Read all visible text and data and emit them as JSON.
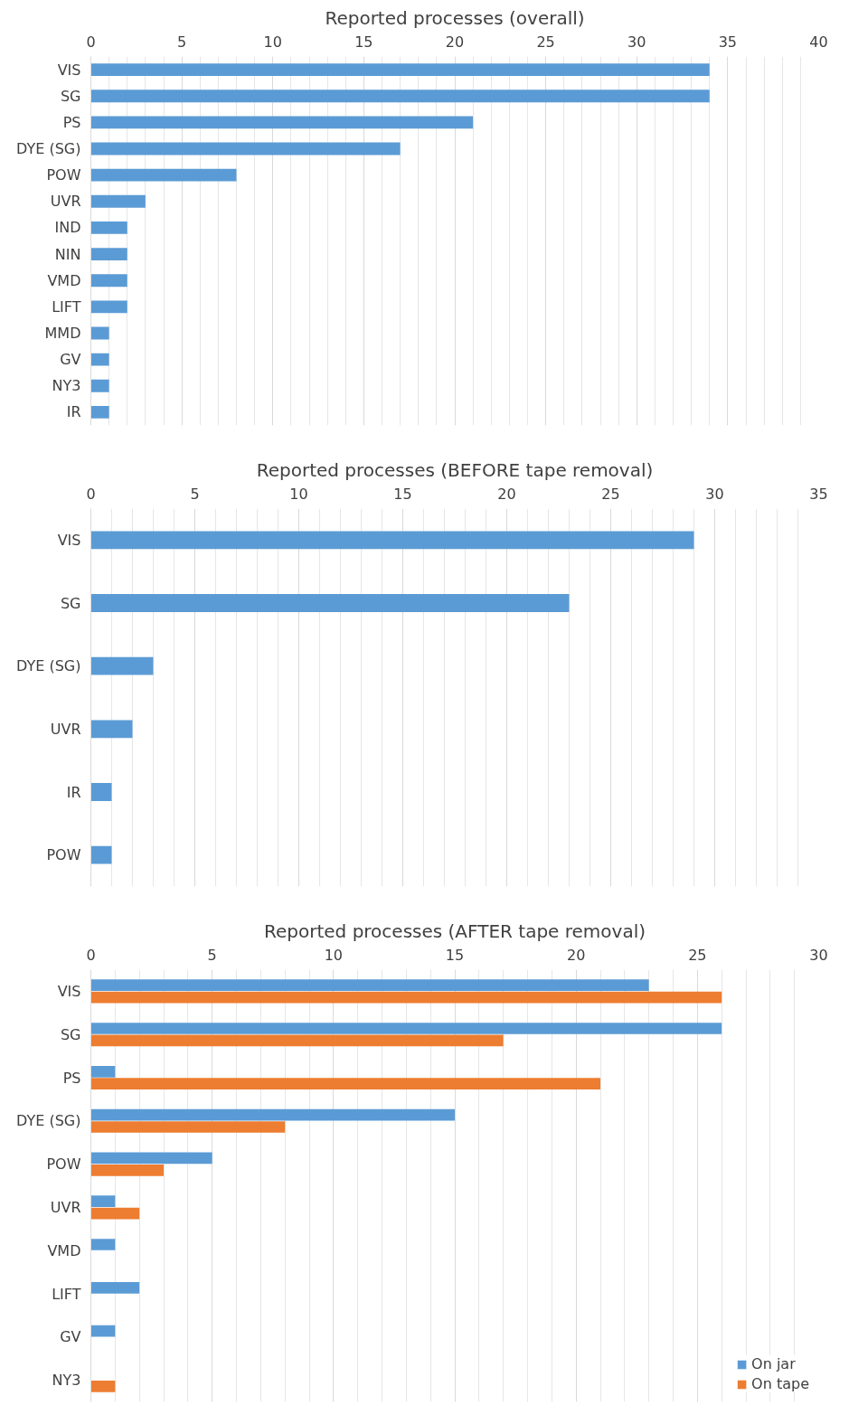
{
  "chart_data": [
    {
      "type": "bar",
      "orientation": "horizontal",
      "title": "Reported processes (overall)",
      "categories": [
        "VIS",
        "SG",
        "PS",
        "DYE (SG)",
        "POW",
        "UVR",
        "IND",
        "NIN",
        "VMD",
        "LIFT",
        "MMD",
        "GV",
        "NY3",
        "IR"
      ],
      "series": [
        {
          "color": "#5b9bd5",
          "values": [
            34,
            34,
            21,
            17,
            8,
            3,
            2,
            2,
            2,
            2,
            1,
            1,
            1,
            1
          ]
        }
      ],
      "xlim": [
        0,
        40
      ],
      "xticks": [
        0,
        5,
        10,
        15,
        20,
        25,
        30,
        35,
        40
      ],
      "grid": "x"
    },
    {
      "type": "bar",
      "orientation": "horizontal",
      "title": "Reported processes (BEFORE tape removal)",
      "categories": [
        "VIS",
        "SG",
        "DYE (SG)",
        "UVR",
        "IR",
        "POW"
      ],
      "series": [
        {
          "color": "#5b9bd5",
          "values": [
            29,
            23,
            3,
            2,
            1,
            1
          ]
        }
      ],
      "xlim": [
        0,
        35
      ],
      "xticks": [
        0,
        5,
        10,
        15,
        20,
        25,
        30,
        35
      ],
      "grid": "x"
    },
    {
      "type": "bar",
      "orientation": "horizontal",
      "title": "Reported processes (AFTER tape removal)",
      "categories": [
        "VIS",
        "SG",
        "PS",
        "DYE (SG)",
        "POW",
        "UVR",
        "VMD",
        "LIFT",
        "GV",
        "NY3"
      ],
      "series": [
        {
          "name": "On jar",
          "color": "#5b9bd5",
          "values": [
            23,
            26,
            1,
            15,
            5,
            1,
            1,
            2,
            1,
            null
          ]
        },
        {
          "name": "On tape",
          "color": "#ed7d31",
          "values": [
            26,
            17,
            21,
            8,
            3,
            2,
            null,
            null,
            null,
            1
          ]
        }
      ],
      "xlim": [
        0,
        30
      ],
      "xticks": [
        0,
        5,
        10,
        15,
        20,
        25,
        30
      ],
      "grid": "x",
      "legend": "bottom right"
    }
  ]
}
